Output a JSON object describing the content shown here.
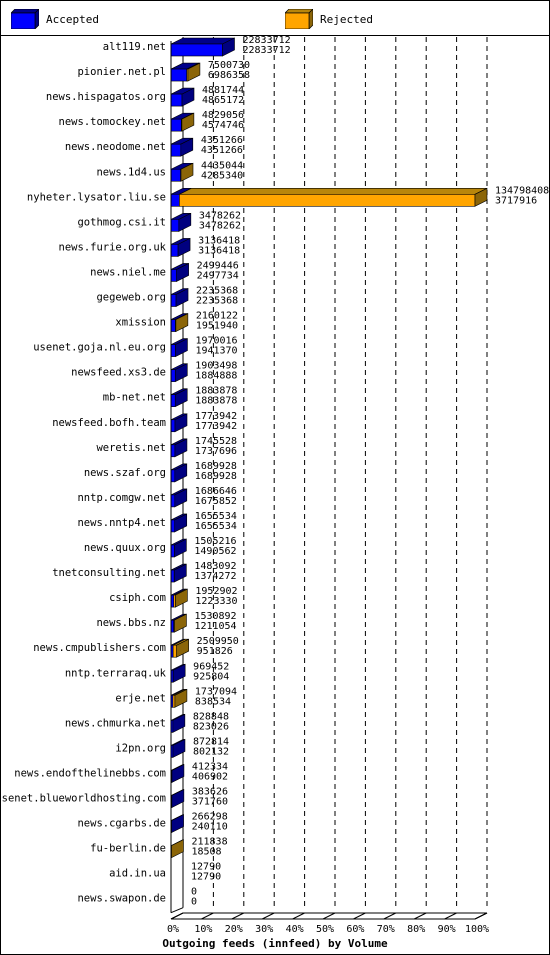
{
  "legend": {
    "accepted_label": "Accepted",
    "rejected_label": "Rejected",
    "accepted_color": "#0000ff",
    "rejected_color": "#ffa500"
  },
  "chart_data": {
    "type": "bar",
    "orientation": "horizontal",
    "stacked": true,
    "xlabel": "Outgoing feeds (innfeed) by Volume",
    "x_ticks": [
      "0%",
      "10%",
      "20%",
      "30%",
      "40%",
      "50%",
      "60%",
      "70%",
      "80%",
      "90%",
      "100%"
    ],
    "xlim": [
      0,
      134798408
    ],
    "categories": [
      "alt119.net",
      "pionier.net.pl",
      "news.hispagatos.org",
      "news.tomockey.net",
      "news.neodome.net",
      "news.1d4.us",
      "nyheter.lysator.liu.se",
      "gothmog.csi.it",
      "news.furie.org.uk",
      "news.niel.me",
      "gegeweb.org",
      "xmission",
      "usenet.goja.nl.eu.org",
      "newsfeed.xs3.de",
      "mb-net.net",
      "newsfeed.bofh.team",
      "weretis.net",
      "news.szaf.org",
      "nntp.comgw.net",
      "news.nntp4.net",
      "news.quux.org",
      "tnetconsulting.net",
      "csiph.com",
      "news.bbs.nz",
      "news.cmpublishers.com",
      "nntp.terraraq.uk",
      "erje.net",
      "news.chmurka.net",
      "i2pn.org",
      "news.endofthelinebbs.com",
      "usenet.blueworldhosting.com",
      "news.cgarbs.de",
      "fu-berlin.de",
      "aid.in.ua",
      "news.swapon.de"
    ],
    "offered": [
      22833712,
      7500730,
      4881744,
      4829056,
      4351266,
      4435044,
      134798408,
      3478262,
      3136418,
      2499446,
      2235368,
      2160122,
      1970016,
      1903498,
      1883878,
      1773942,
      1745528,
      1689928,
      1686646,
      1655534,
      1505216,
      1483092,
      1952902,
      1530892,
      2509950,
      969452,
      1737094,
      828848,
      872814,
      412334,
      383626,
      266298,
      211838,
      12790,
      0
    ],
    "accepted": [
      22833712,
      6986358,
      4865172,
      4574746,
      4351266,
      4285340,
      3717916,
      3478262,
      3136418,
      2497734,
      2235368,
      1951940,
      1941370,
      1884888,
      1883878,
      1773942,
      1737696,
      1689928,
      1675852,
      1655534,
      1490562,
      1374272,
      1223330,
      1211054,
      951826,
      925804,
      838534,
      823026,
      802132,
      406902,
      371760,
      240110,
      18508,
      12790,
      0
    ],
    "series": [
      {
        "name": "Accepted",
        "color": "#0000ff"
      },
      {
        "name": "Rejected",
        "color": "#ffa500"
      }
    ]
  }
}
